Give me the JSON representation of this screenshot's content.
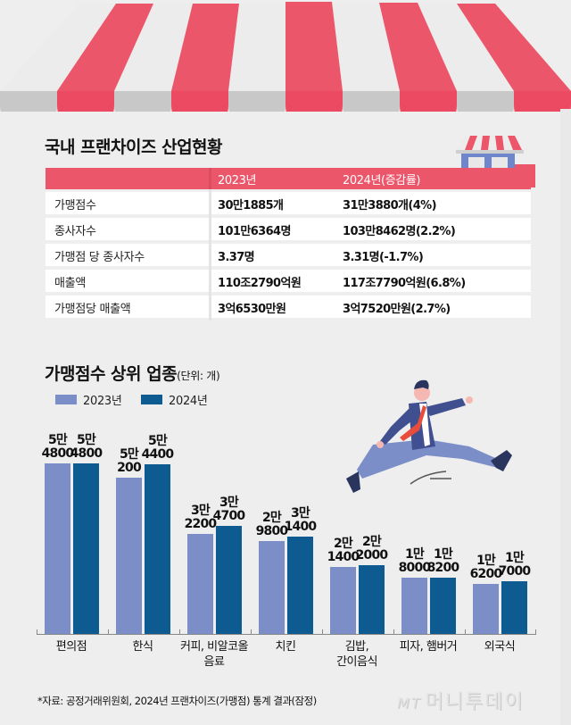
{
  "infographic": {
    "main_title": "국내 프랜차이즈 산업현황",
    "table": {
      "headers": [
        "",
        "2023년",
        "2024년(증감률)"
      ],
      "rows": [
        {
          "label": "가맹점수",
          "y2023": "30만1885개",
          "y2024": "31만3880개(4%)"
        },
        {
          "label": "종사자수",
          "y2023": "101만6364명",
          "y2024": "103만8462명(2.2%)"
        },
        {
          "label": "가맹점 당 종사자수",
          "y2023": "3.37명",
          "y2024": "3.31명(-1.7%)"
        },
        {
          "label": "매출액",
          "y2023": "110조2790억원",
          "y2024": "117조7790억원(6.8%)"
        },
        {
          "label": "가맹점당 매출액",
          "y2023": "3억6530만원",
          "y2024": "3억7520만원(2.7%)"
        }
      ]
    },
    "chart_title": "가맹점수 상위 업종",
    "chart_unit": "(단위: 개)",
    "source": "*자료: 공정거래위원회, 2024년 프랜차이즈(가맹점) 통계 결과(잠정)",
    "logo_text": "머니투데이",
    "logo_mark": "MT"
  },
  "colors": {
    "awning_red": "#ec566b",
    "awning_white": "#ececec",
    "scallop_gray": "#c8c8c8",
    "background": "#eeeeee",
    "series_2023": "#7b8ec8",
    "series_2024": "#0d5b91",
    "store_blue": "#6f86cc"
  },
  "chart_data": {
    "type": "bar",
    "title": "가맹점수 상위 업종",
    "unit": "개",
    "xlabel": "",
    "ylabel": "",
    "grid": false,
    "legend_position": "top-left",
    "categories": [
      "편의점",
      "한식",
      "커피, 비알코올 음료",
      "치킨",
      "김밥, 간이음식",
      "피자, 햄버거",
      "외국식"
    ],
    "category_lines": [
      [
        "편의점"
      ],
      [
        "한식"
      ],
      [
        "커피, 비알코올",
        "음료"
      ],
      [
        "치킨"
      ],
      [
        "김밥,",
        "간이음식"
      ],
      [
        "피자, 햄버거"
      ],
      [
        "외국식"
      ]
    ],
    "series": [
      {
        "name": "2023년",
        "values": [
          54800,
          50200,
          32200,
          29800,
          21400,
          18000,
          16200
        ],
        "labels": [
          [
            "5만",
            "4800"
          ],
          [
            "5만",
            "200"
          ],
          [
            "3만",
            "2200"
          ],
          [
            "2만",
            "9800"
          ],
          [
            "2만",
            "1400"
          ],
          [
            "1만",
            "8000"
          ],
          [
            "1만",
            "6200"
          ]
        ]
      },
      {
        "name": "2024년",
        "values": [
          54800,
          54400,
          34700,
          31400,
          22000,
          18200,
          17000
        ],
        "labels": [
          [
            "5만",
            "4800"
          ],
          [
            "5만",
            "4400"
          ],
          [
            "3만",
            "4700"
          ],
          [
            "3만",
            "1400"
          ],
          [
            "2만",
            "2000"
          ],
          [
            "1만",
            "8200"
          ],
          [
            "1만",
            "7000"
          ]
        ]
      }
    ],
    "ylim": [
      0,
      60000
    ]
  }
}
